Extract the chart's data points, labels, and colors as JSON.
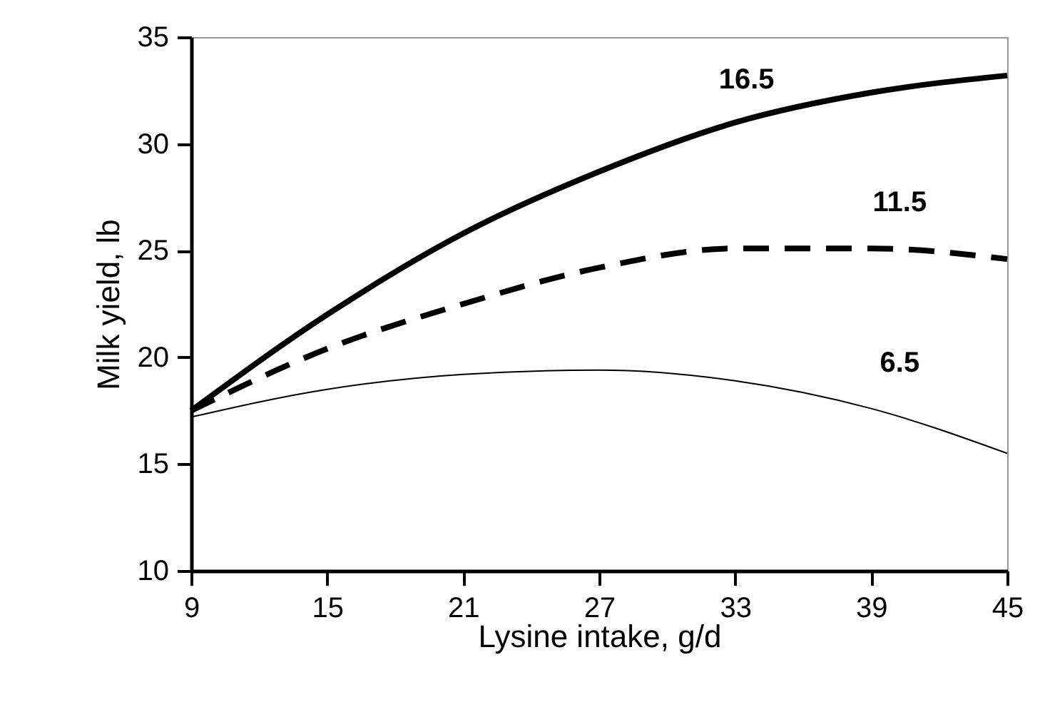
{
  "chart_data": {
    "type": "line",
    "xlabel": "Lysine intake, g/d",
    "ylabel": "Milk yield, lb",
    "x": [
      9,
      15,
      21,
      27,
      33,
      39,
      45
    ],
    "xlim": [
      9,
      45
    ],
    "xticks": [
      9,
      15,
      21,
      27,
      33,
      39,
      45
    ],
    "ylim": [
      10,
      35
    ],
    "yticks": [
      10,
      15,
      20,
      25,
      30,
      35
    ],
    "grid": false,
    "marker": "none",
    "series": [
      {
        "name": "16.5",
        "color": "#000000",
        "line_style": "solid",
        "values": [
          17.5,
          22.0,
          25.8,
          28.7,
          31.0,
          32.4,
          33.2
        ]
      },
      {
        "name": "11.5",
        "color": "#000000",
        "line_style": "dashed",
        "values": [
          17.5,
          20.4,
          22.5,
          24.2,
          25.1,
          25.1,
          24.6
        ]
      },
      {
        "name": "6.5",
        "color": "#000000",
        "line_style": "solid",
        "values": [
          17.2,
          18.5,
          19.2,
          19.4,
          18.9,
          17.6,
          15.5
        ]
      }
    ]
  }
}
